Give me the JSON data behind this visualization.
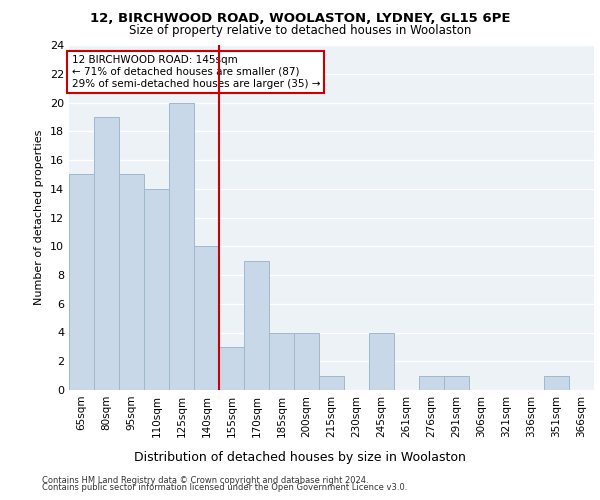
{
  "title1": "12, BIRCHWOOD ROAD, WOOLASTON, LYDNEY, GL15 6PE",
  "title2": "Size of property relative to detached houses in Woolaston",
  "xlabel": "Distribution of detached houses by size in Woolaston",
  "ylabel": "Number of detached properties",
  "categories": [
    "65sqm",
    "80sqm",
    "95sqm",
    "110sqm",
    "125sqm",
    "140sqm",
    "155sqm",
    "170sqm",
    "185sqm",
    "200sqm",
    "215sqm",
    "230sqm",
    "245sqm",
    "261sqm",
    "276sqm",
    "291sqm",
    "306sqm",
    "321sqm",
    "336sqm",
    "351sqm",
    "366sqm"
  ],
  "values": [
    15,
    19,
    15,
    14,
    20,
    10,
    3,
    9,
    4,
    4,
    1,
    0,
    4,
    0,
    1,
    1,
    0,
    0,
    0,
    1,
    0
  ],
  "bar_color": "#c8d8e8",
  "bar_edgecolor": "#a0b8cc",
  "vline_index": 5,
  "annotation_line1": "12 BIRCHWOOD ROAD: 145sqm",
  "annotation_line2": "← 71% of detached houses are smaller (87)",
  "annotation_line3": "29% of semi-detached houses are larger (35) →",
  "vline_color": "#cc0000",
  "annotation_box_edgecolor": "#cc0000",
  "ylim": [
    0,
    24
  ],
  "yticks": [
    0,
    2,
    4,
    6,
    8,
    10,
    12,
    14,
    16,
    18,
    20,
    22,
    24
  ],
  "background_color": "#edf2f7",
  "footer1": "Contains HM Land Registry data © Crown copyright and database right 2024.",
  "footer2": "Contains public sector information licensed under the Open Government Licence v3.0."
}
